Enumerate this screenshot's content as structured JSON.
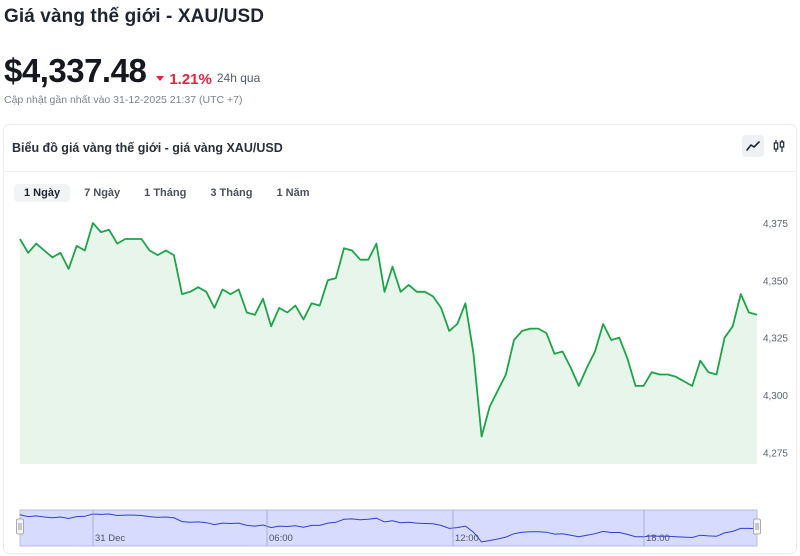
{
  "header": {
    "title": "Giá vàng thế giới - XAU/USD",
    "price": "$4,337.48",
    "change": "1.21%",
    "period": "24h qua",
    "updated": "Cập nhật gần nhất vào 31-12-2025 21:37 (UTC +7)"
  },
  "card": {
    "title": "Biểu đồ giá vàng thế giới - giá vàng XAU/USD",
    "tabs": [
      {
        "label": "1 Ngày",
        "active": true
      },
      {
        "label": "7 Ngày",
        "active": false
      },
      {
        "label": "1 Tháng",
        "active": false
      },
      {
        "label": "3 Tháng",
        "active": false
      },
      {
        "label": "1 Năm",
        "active": false
      }
    ],
    "toggles": [
      {
        "icon": "line-chart-icon",
        "active": true
      },
      {
        "icon": "candlestick-icon",
        "active": false
      }
    ]
  },
  "colors": {
    "line": "#1fa34a",
    "fill": "#e8f5ea",
    "down": "#e5243b",
    "navigator_fill": "#d7dcff",
    "navigator_line": "#2f3fd6"
  },
  "chart_data": {
    "type": "area",
    "ylim": [
      4270,
      4385
    ],
    "yticks": [
      4275,
      4300,
      4325,
      4350,
      4375
    ],
    "ytick_labels": [
      "4,275",
      "4,300",
      "4,325",
      "4,350",
      "4,375"
    ],
    "navigator_labels": [
      "31 Dec",
      "06:00",
      "12:00",
      "18:00"
    ],
    "values": [
      4368,
      4362,
      4366,
      4363,
      4360,
      4362,
      4355,
      4365,
      4363,
      4375,
      4371,
      4372,
      4366,
      4368,
      4368,
      4368,
      4363,
      4361,
      4363,
      4361,
      4344,
      4345,
      4347,
      4345,
      4338,
      4346,
      4344,
      4346,
      4336,
      4335,
      4342,
      4330,
      4338,
      4336,
      4339,
      4333,
      4340,
      4339,
      4350,
      4351,
      4364,
      4363,
      4359,
      4359,
      4366,
      4345,
      4356,
      4345,
      4348,
      4345,
      4345,
      4343,
      4338,
      4328,
      4331,
      4340,
      4318,
      4282,
      4295,
      4302,
      4309,
      4324,
      4328,
      4329,
      4329,
      4327,
      4318,
      4319,
      4312,
      4304,
      4312,
      4319,
      4331,
      4324,
      4325,
      4316,
      4304,
      4304,
      4310,
      4309,
      4309,
      4308,
      4306,
      4304,
      4315,
      4310,
      4309,
      4325,
      4330,
      4344,
      4336,
      4335
    ],
    "navigator_values": [
      4368,
      4363,
      4365,
      4362,
      4360,
      4362,
      4358,
      4363,
      4364,
      4370,
      4369,
      4370,
      4366,
      4367,
      4367,
      4366,
      4363,
      4361,
      4362,
      4360,
      4350,
      4348,
      4349,
      4347,
      4342,
      4346,
      4345,
      4346,
      4340,
      4338,
      4341,
      4334,
      4338,
      4337,
      4339,
      4335,
      4340,
      4340,
      4346,
      4348,
      4356,
      4357,
      4355,
      4356,
      4359,
      4349,
      4352,
      4347,
      4348,
      4346,
      4345,
      4344,
      4340,
      4332,
      4334,
      4338,
      4322,
      4296,
      4300,
      4304,
      4309,
      4318,
      4322,
      4323,
      4323,
      4322,
      4317,
      4318,
      4314,
      4310,
      4314,
      4318,
      4324,
      4321,
      4321,
      4316,
      4310,
      4310,
      4312,
      4311,
      4311,
      4310,
      4309,
      4308,
      4314,
      4312,
      4311,
      4320,
      4324,
      4332,
      4332,
      4331
    ]
  }
}
